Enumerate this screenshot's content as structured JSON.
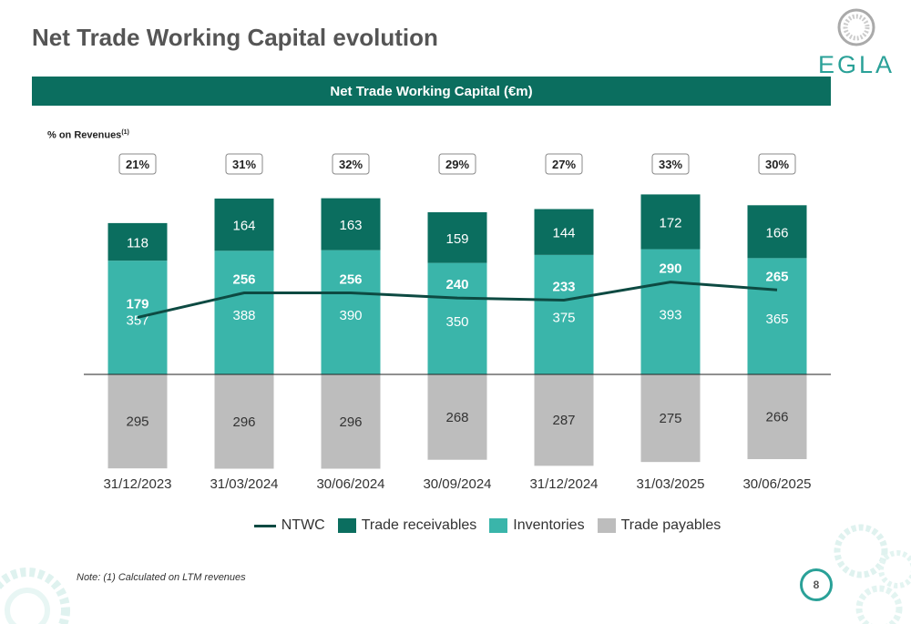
{
  "page": {
    "title": "Net Trade Working Capital evolution",
    "banner": "Net Trade Working Capital (€m)",
    "pct_label": "% on Revenues",
    "pct_sup": "(1)",
    "note": "Note: (1) Calculated on LTM revenues",
    "page_number": "8",
    "logo_text": "EGLA"
  },
  "colors": {
    "trade_receivables": "#0b6e5f",
    "inventories": "#3ab5aa",
    "trade_payables": "#bdbdbd",
    "ntwc": "#0d4a42",
    "banner": "#0b6e5f"
  },
  "chart_data": {
    "type": "bar",
    "stacked": true,
    "categories": [
      "31/12/2023",
      "31/03/2024",
      "30/06/2024",
      "30/09/2024",
      "31/12/2024",
      "31/03/2025",
      "30/06/2025"
    ],
    "series": [
      {
        "name": "Trade receivables",
        "values": [
          118,
          164,
          163,
          159,
          144,
          172,
          166
        ]
      },
      {
        "name": "Inventories",
        "values": [
          357,
          388,
          390,
          350,
          375,
          393,
          365
        ]
      },
      {
        "name": "Trade payables",
        "values": [
          -295,
          -296,
          -296,
          -268,
          -287,
          -275,
          -266
        ]
      }
    ],
    "payables_labels": [
      "295",
      "296",
      "296",
      "268",
      "287",
      "275",
      "266"
    ],
    "line": {
      "name": "NTWC",
      "values": [
        179,
        256,
        256,
        240,
        233,
        290,
        265
      ]
    },
    "pct_on_revenues": [
      "21%",
      "31%",
      "32%",
      "29%",
      "27%",
      "33%",
      "30%"
    ],
    "legend": [
      "NTWC",
      "Trade receivables",
      "Inventories",
      "Trade payables"
    ],
    "legend_position": "bottom"
  }
}
